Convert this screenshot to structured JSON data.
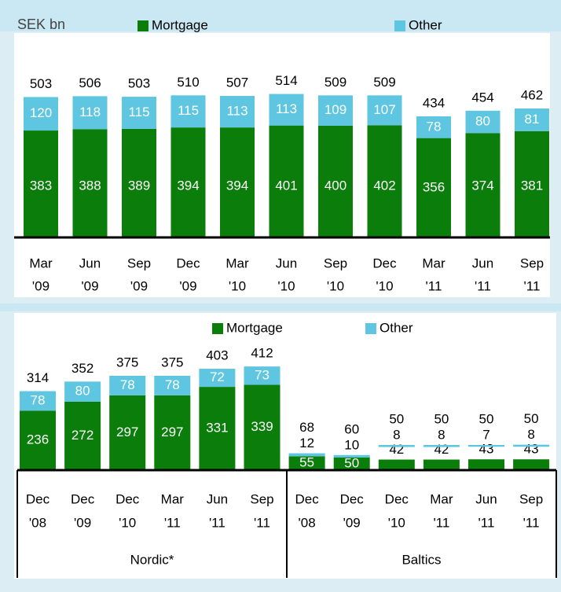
{
  "chart_data": [
    {
      "type": "bar",
      "stacked": true,
      "unit_label": "SEK bn",
      "categories": [
        [
          "Mar",
          "'09"
        ],
        [
          "Jun",
          "'09"
        ],
        [
          "Sep",
          "'09"
        ],
        [
          "Dec",
          "'09"
        ],
        [
          "Mar",
          "'10"
        ],
        [
          "Jun",
          "'10"
        ],
        [
          "Sep",
          "'10"
        ],
        [
          "Dec",
          "'10"
        ],
        [
          "Mar",
          "'11"
        ],
        [
          "Jun",
          "'11"
        ],
        [
          "Sep",
          "'11"
        ]
      ],
      "series": [
        {
          "name": "Mortgage",
          "color": "#0b7d0b",
          "values": [
            383,
            388,
            389,
            394,
            394,
            401,
            400,
            402,
            356,
            374,
            381
          ]
        },
        {
          "name": "Other",
          "color": "#5ec6e0",
          "values": [
            120,
            118,
            115,
            115,
            113,
            113,
            109,
            107,
            78,
            80,
            81
          ]
        }
      ],
      "totals": [
        503,
        506,
        503,
        510,
        507,
        514,
        509,
        509,
        434,
        454,
        462
      ]
    },
    {
      "type": "bar",
      "stacked": true,
      "categories": [
        [
          "Dec",
          "'08"
        ],
        [
          "Dec",
          "'09"
        ],
        [
          "Dec",
          "'10"
        ],
        [
          "Mar",
          "'11"
        ],
        [
          "Jun",
          "'11"
        ],
        [
          "Sep",
          "'11"
        ],
        [
          "Dec",
          "'08"
        ],
        [
          "Dec",
          "'09"
        ],
        [
          "Dec",
          "'10"
        ],
        [
          "Mar",
          "'11"
        ],
        [
          "Jun",
          "'11"
        ],
        [
          "Sep",
          "'11"
        ]
      ],
      "series": [
        {
          "name": "Mortgage",
          "color": "#0b7d0b",
          "values": [
            236,
            272,
            297,
            297,
            331,
            339,
            55,
            50,
            42,
            42,
            43,
            43
          ]
        },
        {
          "name": "Other",
          "color": "#5ec6e0",
          "values": [
            78,
            80,
            78,
            78,
            72,
            73,
            12,
            10,
            8,
            8,
            7,
            8
          ]
        }
      ],
      "totals": [
        314,
        352,
        375,
        375,
        403,
        412,
        68,
        60,
        50,
        50,
        50,
        50
      ],
      "groups": [
        {
          "name": "Nordic*"
        },
        {
          "name": "Baltics"
        }
      ]
    }
  ]
}
